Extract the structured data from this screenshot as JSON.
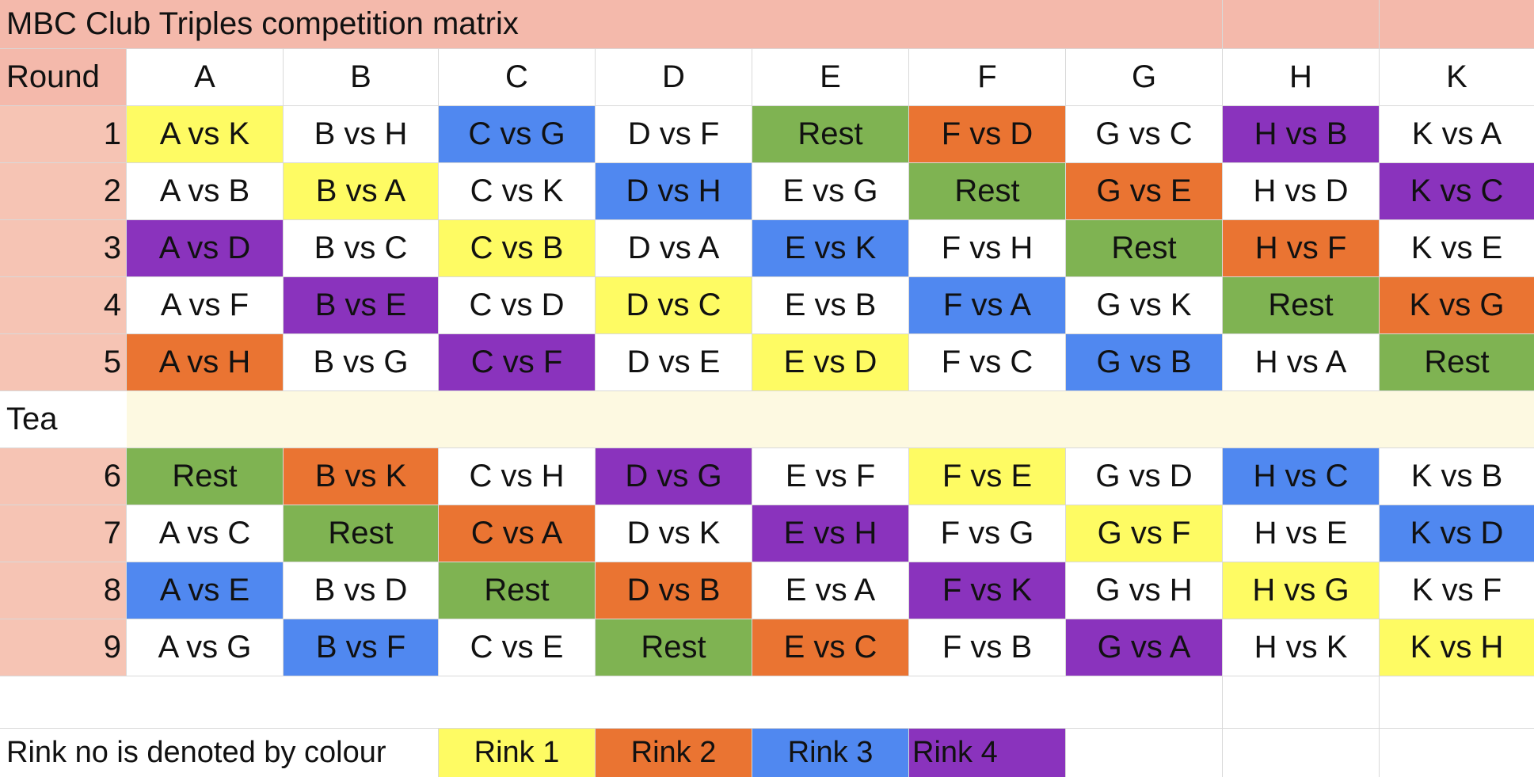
{
  "title": "MBC Club Triples competition matrix",
  "header": {
    "round_label": "Round",
    "columns": [
      "A",
      "B",
      "C",
      "D",
      "E",
      "F",
      "G",
      "H",
      "K"
    ]
  },
  "tea_label": "Tea",
  "colors": {
    "title_bg": "#f4b9ab",
    "round_col_bg": "#f6c4b4",
    "tea_band": "#fdf9e1",
    "rest": "#7fb352",
    "rink_1": "#fefb63",
    "rink_2": "#ea7432",
    "rink_3": "#5088f0",
    "rink_4": "#8a33bd"
  },
  "rounds_before_tea": [
    {
      "round": "1",
      "cells": [
        {
          "text": "A vs K",
          "rink": "1"
        },
        {
          "text": "B vs H",
          "rink": ""
        },
        {
          "text": "C vs G",
          "rink": "3"
        },
        {
          "text": "D vs F",
          "rink": ""
        },
        {
          "text": "Rest",
          "rink": "rest"
        },
        {
          "text": "F vs D",
          "rink": "2"
        },
        {
          "text": "G vs C",
          "rink": ""
        },
        {
          "text": "H vs B",
          "rink": "4"
        },
        {
          "text": "K vs A",
          "rink": ""
        }
      ]
    },
    {
      "round": "2",
      "cells": [
        {
          "text": "A vs B",
          "rink": ""
        },
        {
          "text": "B vs A",
          "rink": "1"
        },
        {
          "text": "C vs K",
          "rink": ""
        },
        {
          "text": "D vs H",
          "rink": "3"
        },
        {
          "text": "E vs G",
          "rink": ""
        },
        {
          "text": "Rest",
          "rink": "rest"
        },
        {
          "text": "G vs E",
          "rink": "2"
        },
        {
          "text": "H vs D",
          "rink": ""
        },
        {
          "text": "K vs C",
          "rink": "4"
        }
      ]
    },
    {
      "round": "3",
      "cells": [
        {
          "text": "A vs D",
          "rink": "4"
        },
        {
          "text": "B vs C",
          "rink": ""
        },
        {
          "text": "C vs B",
          "rink": "1"
        },
        {
          "text": "D vs A",
          "rink": ""
        },
        {
          "text": "E vs K",
          "rink": "3"
        },
        {
          "text": "F vs H",
          "rink": ""
        },
        {
          "text": "Rest",
          "rink": "rest"
        },
        {
          "text": "H vs F",
          "rink": "2"
        },
        {
          "text": "K vs E",
          "rink": ""
        }
      ]
    },
    {
      "round": "4",
      "cells": [
        {
          "text": "A vs F",
          "rink": ""
        },
        {
          "text": "B vs E",
          "rink": "4"
        },
        {
          "text": "C vs D",
          "rink": ""
        },
        {
          "text": "D vs C",
          "rink": "1"
        },
        {
          "text": "E vs B",
          "rink": ""
        },
        {
          "text": "F vs A",
          "rink": "3"
        },
        {
          "text": "G vs K",
          "rink": ""
        },
        {
          "text": "Rest",
          "rink": "rest"
        },
        {
          "text": "K vs G",
          "rink": "2"
        }
      ]
    },
    {
      "round": "5",
      "cells": [
        {
          "text": "A vs H",
          "rink": "2"
        },
        {
          "text": "B vs G",
          "rink": ""
        },
        {
          "text": "C vs F",
          "rink": "4"
        },
        {
          "text": "D vs E",
          "rink": ""
        },
        {
          "text": "E vs D",
          "rink": "1"
        },
        {
          "text": "F vs C",
          "rink": ""
        },
        {
          "text": "G vs B",
          "rink": "3"
        },
        {
          "text": "H vs A",
          "rink": ""
        },
        {
          "text": "Rest",
          "rink": "rest"
        }
      ]
    }
  ],
  "rounds_after_tea": [
    {
      "round": "6",
      "cells": [
        {
          "text": "Rest",
          "rink": "rest"
        },
        {
          "text": "B vs K",
          "rink": "2"
        },
        {
          "text": "C vs H",
          "rink": ""
        },
        {
          "text": "D vs G",
          "rink": "4"
        },
        {
          "text": "E vs F",
          "rink": ""
        },
        {
          "text": "F vs E",
          "rink": "1"
        },
        {
          "text": "G vs D",
          "rink": ""
        },
        {
          "text": "H vs C",
          "rink": "3"
        },
        {
          "text": "K vs B",
          "rink": ""
        }
      ]
    },
    {
      "round": "7",
      "cells": [
        {
          "text": "A vs C",
          "rink": ""
        },
        {
          "text": "Rest",
          "rink": "rest"
        },
        {
          "text": "C vs A",
          "rink": "2"
        },
        {
          "text": "D vs K",
          "rink": ""
        },
        {
          "text": "E vs H",
          "rink": "4"
        },
        {
          "text": "F vs G",
          "rink": ""
        },
        {
          "text": "G vs F",
          "rink": "1"
        },
        {
          "text": "H vs E",
          "rink": ""
        },
        {
          "text": "K vs D",
          "rink": "3"
        }
      ]
    },
    {
      "round": "8",
      "cells": [
        {
          "text": "A vs E",
          "rink": "3"
        },
        {
          "text": "B vs D",
          "rink": ""
        },
        {
          "text": "Rest",
          "rink": "rest"
        },
        {
          "text": "D vs B",
          "rink": "2"
        },
        {
          "text": "E vs A",
          "rink": ""
        },
        {
          "text": "F vs K",
          "rink": "4"
        },
        {
          "text": "G vs H",
          "rink": ""
        },
        {
          "text": "H vs G",
          "rink": "1"
        },
        {
          "text": "K vs F",
          "rink": ""
        }
      ]
    },
    {
      "round": "9",
      "cells": [
        {
          "text": "A vs G",
          "rink": ""
        },
        {
          "text": "B vs F",
          "rink": "3"
        },
        {
          "text": "C vs E",
          "rink": ""
        },
        {
          "text": "Rest",
          "rink": "rest"
        },
        {
          "text": "E vs C",
          "rink": "2"
        },
        {
          "text": "F vs B",
          "rink": ""
        },
        {
          "text": "G vs A",
          "rink": "4"
        },
        {
          "text": "H vs K",
          "rink": ""
        },
        {
          "text": "K vs H",
          "rink": "1"
        }
      ]
    }
  ],
  "legend": {
    "label": "Rink no is denoted by colour",
    "items": [
      {
        "label": "Rink 1",
        "rink": "1"
      },
      {
        "label": "Rink 2",
        "rink": "2"
      },
      {
        "label": "Rink 3",
        "rink": "3"
      },
      {
        "label": "Rink 4",
        "rink": "4"
      }
    ]
  }
}
